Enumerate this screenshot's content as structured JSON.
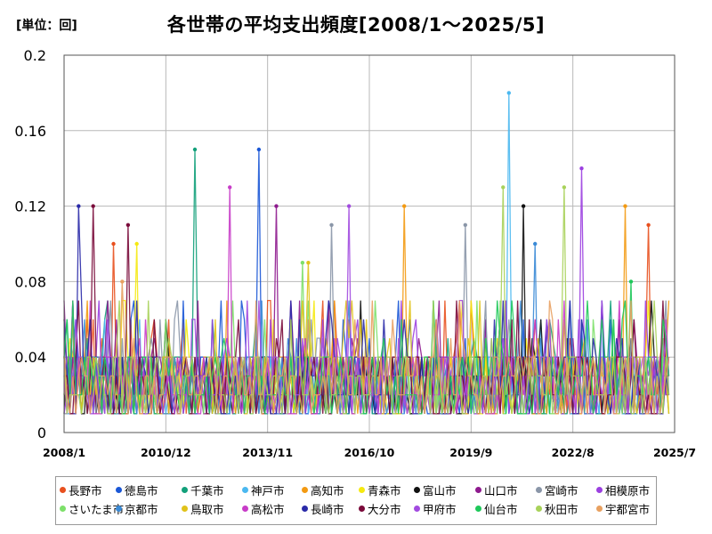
{
  "chart_data": {
    "type": "line",
    "title": "各世帯の平均支出頻度[2008/1～2025/5]",
    "unit_label": "[単位：回]",
    "xlabel": "",
    "ylabel": "",
    "x_start": "2008/1",
    "x_end": "2025/7",
    "x_ticks": [
      "2008/1",
      "2010/12",
      "2013/11",
      "2016/10",
      "2019/9",
      "2022/8",
      "2025/7"
    ],
    "ylim": [
      0,
      0.2
    ],
    "y_ticks": [
      "0",
      "0.04",
      "0.08",
      "0.12",
      "0.16",
      "0.2"
    ],
    "y_tick_values": [
      0,
      0.04,
      0.08,
      0.12,
      0.16,
      0.2
    ],
    "grid": true,
    "legend_position": "bottom",
    "series": [
      {
        "name": "長野市",
        "color": "#e8501e",
        "peaks": [
          [
            "2024/10",
            0.11
          ],
          [
            "2009/6",
            0.1
          ]
        ]
      },
      {
        "name": "徳島市",
        "color": "#1a57d6",
        "peaks": [
          [
            "2013/8",
            0.15
          ]
        ]
      },
      {
        "name": "千葉市",
        "color": "#12a07a",
        "peaks": [
          [
            "2011/10",
            0.15
          ]
        ]
      },
      {
        "name": "神戸市",
        "color": "#4bb8f0",
        "peaks": [
          [
            "2020/10",
            0.18
          ]
        ]
      },
      {
        "name": "高知市",
        "color": "#f39a12",
        "peaks": [
          [
            "2017/10",
            0.12
          ],
          [
            "2024/2",
            0.12
          ]
        ]
      },
      {
        "name": "青森市",
        "color": "#f5e90f",
        "peaks": [
          [
            "2010/2",
            0.1
          ]
        ]
      },
      {
        "name": "富山市",
        "color": "#111111",
        "peaks": [
          [
            "2021/3",
            0.12
          ]
        ]
      },
      {
        "name": "山口市",
        "color": "#8e1a8e",
        "peaks": [
          [
            "2014/2",
            0.12
          ]
        ]
      },
      {
        "name": "宮崎市",
        "color": "#8a96a8",
        "peaks": [
          [
            "2015/9",
            0.11
          ],
          [
            "2019/7",
            0.11
          ]
        ]
      },
      {
        "name": "相模原市",
        "color": "#9b3fe0",
        "peaks": [
          [
            "2022/11",
            0.14
          ]
        ]
      },
      {
        "name": "さいたま市",
        "color": "#7de06a",
        "peaks": [
          [
            "2014/11",
            0.09
          ]
        ]
      },
      {
        "name": "京都市",
        "color": "#3a8ad6",
        "peaks": [
          [
            "2021/7",
            0.1
          ]
        ]
      },
      {
        "name": "鳥取市",
        "color": "#e0c21a",
        "peaks": [
          [
            "2015/1",
            0.09
          ]
        ]
      },
      {
        "name": "高松市",
        "color": "#c83cc8",
        "peaks": [
          [
            "2012/10",
            0.13
          ]
        ]
      },
      {
        "name": "長崎市",
        "color": "#2a2aa8",
        "peaks": [
          [
            "2008/6",
            0.12
          ]
        ]
      },
      {
        "name": "大分市",
        "color": "#7a0a3a",
        "peaks": [
          [
            "2008/11",
            0.12
          ],
          [
            "2009/11",
            0.11
          ]
        ]
      },
      {
        "name": "甲府市",
        "color": "#a24be0",
        "peaks": [
          [
            "2016/3",
            0.12
          ]
        ]
      },
      {
        "name": "仙台市",
        "color": "#1ec85a",
        "peaks": [
          [
            "2024/4",
            0.08
          ]
        ]
      },
      {
        "name": "秋田市",
        "color": "#a8d25a",
        "peaks": [
          [
            "2020/8",
            0.13
          ],
          [
            "2022/5",
            0.13
          ]
        ]
      },
      {
        "name": "宇都宮市",
        "color": "#e8a060",
        "peaks": [
          [
            "2009/9",
            0.08
          ]
        ]
      }
    ]
  }
}
